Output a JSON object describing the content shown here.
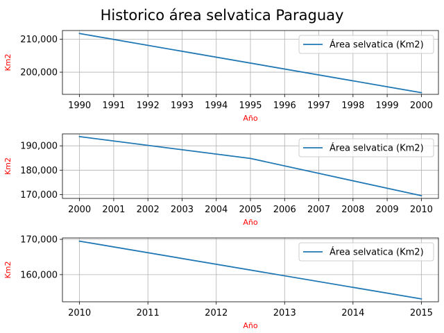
{
  "figure": {
    "title": "Historico área selvatica Paraguay"
  },
  "colors": {
    "series": "#1f77b4",
    "axis_label": "#ff0000",
    "grid": "#b0b0b0"
  },
  "chart_data": [
    {
      "type": "line",
      "xlabel": "Año",
      "ylabel": "Km2",
      "xlim": [
        1989.5,
        2000.5
      ],
      "ylim": [
        193300,
        212600
      ],
      "grid": true,
      "legend_placement": "top-right",
      "x_ticks": [
        "1990",
        "1991",
        "1992",
        "1993",
        "1994",
        "1995",
        "1996",
        "1997",
        "1998",
        "1999",
        "2000"
      ],
      "y_ticks": [
        "200,000",
        "210,000"
      ],
      "series": [
        {
          "name": "Área selvatica (Km2)",
          "x": [
            1990,
            2000
          ],
          "y": [
            211700,
            193800
          ]
        }
      ]
    },
    {
      "type": "line",
      "xlabel": "Año",
      "ylabel": "Km2",
      "xlim": [
        1999.5,
        2010.5
      ],
      "ylim": [
        168400,
        194900
      ],
      "grid": true,
      "legend_placement": "top-right",
      "x_ticks": [
        "2000",
        "2001",
        "2002",
        "2003",
        "2004",
        "2005",
        "2006",
        "2007",
        "2008",
        "2009",
        "2010"
      ],
      "y_ticks": [
        "170,000",
        "180,000",
        "190,000"
      ],
      "series": [
        {
          "name": "Área selvatica (Km2)",
          "x": [
            2000,
            2005,
            2010
          ],
          "y": [
            193800,
            184800,
            169500
          ]
        }
      ]
    },
    {
      "type": "line",
      "xlabel": "Año",
      "ylabel": "Km2",
      "xlim": [
        2009.75,
        2015.25
      ],
      "ylim": [
        152300,
        170400
      ],
      "grid": true,
      "legend_placement": "top-right",
      "x_ticks": [
        "2010",
        "2011",
        "2012",
        "2013",
        "2014",
        "2015"
      ],
      "y_ticks": [
        "160,000",
        "170,000"
      ],
      "series": [
        {
          "name": "Área selvatica (Km2)",
          "x": [
            2010,
            2015
          ],
          "y": [
            169500,
            153100
          ]
        }
      ]
    }
  ]
}
